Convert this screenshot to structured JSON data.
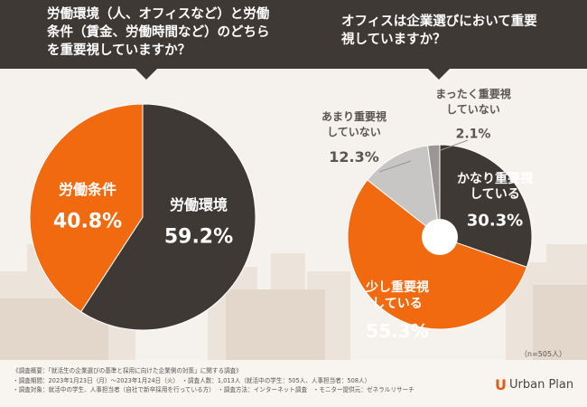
{
  "header": {
    "left_question": "労働環境（人、オフィスなど）と労働条件（賃金、労働時間など）のどちらを重要視していますか？",
    "right_question": "オフィスは企業選びにおいて重要視していますか？"
  },
  "chart_data": [
    {
      "type": "pie",
      "title": "労働環境（人、オフィスなど）と労働条件（賃金、労働時間など）のどちらを重要視していますか？",
      "slices": [
        {
          "label": "労働環境",
          "value": 59.2,
          "display": "59.2%",
          "color": "#3f3936"
        },
        {
          "label": "労働条件",
          "value": 40.8,
          "display": "40.8%",
          "color": "#f26a10"
        }
      ]
    },
    {
      "type": "pie",
      "donut": true,
      "title": "オフィスは企業選びにおいて重要視していますか？",
      "slices": [
        {
          "label": "かなり重要視している",
          "lines": [
            "かなり重要視",
            "している"
          ],
          "value": 30.3,
          "display": "30.3%",
          "color": "#3f3936"
        },
        {
          "label": "少し重要視している",
          "lines": [
            "少し重要視",
            "している"
          ],
          "value": 55.3,
          "display": "55.3%",
          "color": "#f26a10"
        },
        {
          "label": "あまり重要視していない",
          "lines": [
            "あまり重要視",
            "していない"
          ],
          "value": 12.3,
          "display": "12.3%",
          "color": "#c8c6c4"
        },
        {
          "label": "まったく重要視していない",
          "lines": [
            "まったく重要視",
            "していない"
          ],
          "value": 2.1,
          "display": "2.1%",
          "color": "#9a9694"
        }
      ]
    }
  ],
  "sample_note": "（n=505人）",
  "footer": {
    "lines": [
      "《調査概要：「就活生の企業選びの基準と採用に向けた企業側の対策」に関する調査》",
      "・調査期間：2023年1月23日（月）～2023年1月24日（火）　・調査人数：1,013人（就活中の学生：505人、人事担当者：508人）",
      "・調査対象：就活中の学生、人事担当者（自社で新卒採用を行っている方）　・調査方法：インターネット調査　・モニター提供元：ゼネラルリサーチ"
    ]
  },
  "brand": {
    "mark": "U",
    "name": "Urban Plan"
  }
}
